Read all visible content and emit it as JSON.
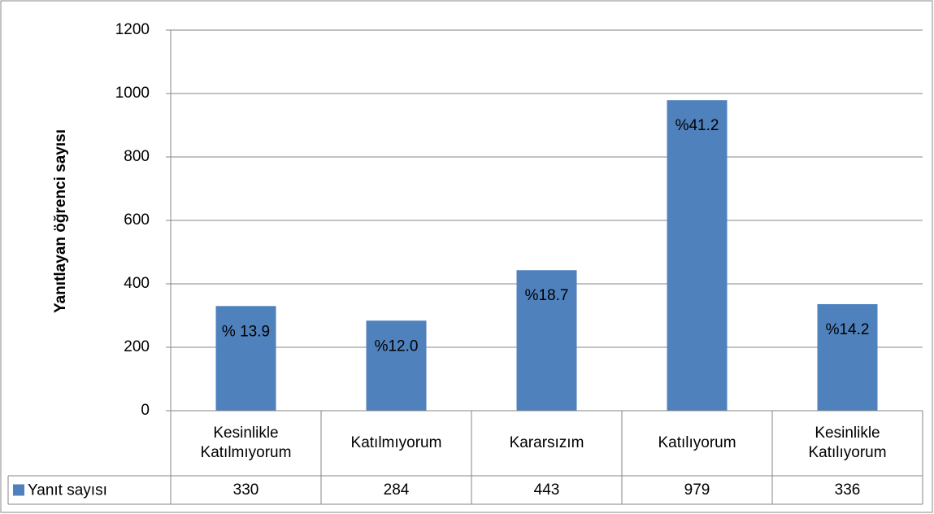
{
  "chart_data": {
    "type": "bar",
    "y_label": "Yanıtlayan öğrenci sayısı",
    "categories": [
      "Kesinlikle Katılmıyorum",
      "Katılmıyorum",
      "Kararsızım",
      "Katılıyorum",
      "Kesinlikle Katılıyorum"
    ],
    "series": [
      {
        "name": "Yanıt sayısı",
        "color": "#4f81bd",
        "values": [
          330,
          284,
          443,
          979,
          336
        ]
      }
    ],
    "annotations": [
      "% 13.9",
      "%12.0",
      "%18.7",
      "%41.2",
      "%14.2"
    ],
    "ylim": [
      0,
      1200
    ],
    "yticks": [
      0,
      200,
      400,
      600,
      800,
      1000,
      1200
    ],
    "grid": true,
    "data_table": true
  }
}
